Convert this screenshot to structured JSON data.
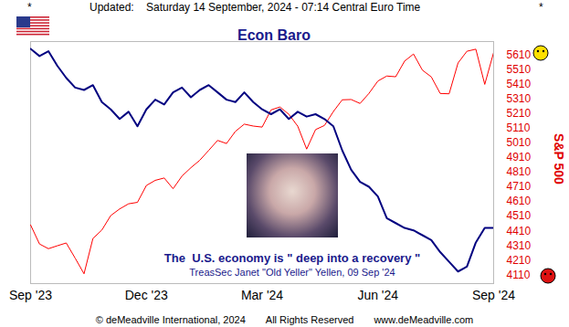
{
  "header": {
    "left_mark": "*",
    "text": "Updated:    Saturday 14 September, 2024 - 07:14 Central Euro Time",
    "right_mark": "*"
  },
  "footer": [
    "© deMeadville International, 2024",
    "All Rights Reserved",
    "www.deMeadville.com"
  ],
  "chart_data": {
    "type": "line",
    "title": "Econ Baro",
    "y_label": "S&P 500",
    "categories": [
      "Sep '23",
      null,
      null,
      null,
      null,
      null,
      null,
      null,
      null,
      null,
      null,
      null,
      null,
      "Dec '23",
      null,
      null,
      null,
      null,
      null,
      null,
      null,
      null,
      null,
      null,
      null,
      null,
      "Mar '24",
      null,
      null,
      null,
      null,
      null,
      null,
      null,
      null,
      null,
      null,
      null,
      null,
      "Jun '24",
      null,
      null,
      null,
      null,
      null,
      null,
      null,
      null,
      null,
      null,
      null,
      null,
      "Sep '24"
    ],
    "series": [
      {
        "color": "#ff0000",
        "values": [
          4450,
          4320,
          4288,
          4308,
          4327,
          4224,
          4117,
          4358,
          4415,
          4514,
          4559,
          4594,
          4604,
          4719,
          4754,
          4770,
          4697,
          4783,
          4840,
          4891,
          4958,
          5026,
          5005,
          5088,
          5137,
          5124,
          5117,
          5234,
          5254,
          5204,
          5123,
          4967,
          5100,
          5128,
          5223,
          5303,
          5305,
          5278,
          5347,
          5431,
          5465,
          5460,
          5567,
          5615,
          5505,
          5459,
          5346,
          5344,
          5554,
          5634,
          5648,
          5408,
          5626
        ]
      },
      {
        "color": "#000080",
        "axis": "y2",
        "values": [
          97,
          94,
          96,
          90,
          85,
          81,
          80,
          82,
          75,
          72,
          68,
          71,
          65,
          72,
          76,
          74,
          79,
          81,
          77,
          80,
          82,
          79,
          76,
          75,
          79,
          75,
          72,
          70,
          72,
          68,
          71,
          69,
          70,
          68,
          65,
          55,
          47,
          42,
          40,
          36,
          27,
          25,
          23,
          22,
          20,
          18,
          13,
          9,
          5,
          7,
          17,
          23,
          23
        ]
      }
    ],
    "ylim": [
      4050,
      5700
    ],
    "yticks": [
      4110,
      4210,
      4310,
      4410,
      4510,
      4610,
      4710,
      4810,
      4910,
      5010,
      5110,
      5210,
      5310,
      5410,
      5510,
      5610
    ],
    "y2lim": [
      0,
      100
    ],
    "grid": false,
    "annotations": [
      "The  U.S. economy is \" deep into a recovery \"",
      "TreasSec Janet \"Old Yeller\" Yellen, 09 Sep '24"
    ]
  }
}
